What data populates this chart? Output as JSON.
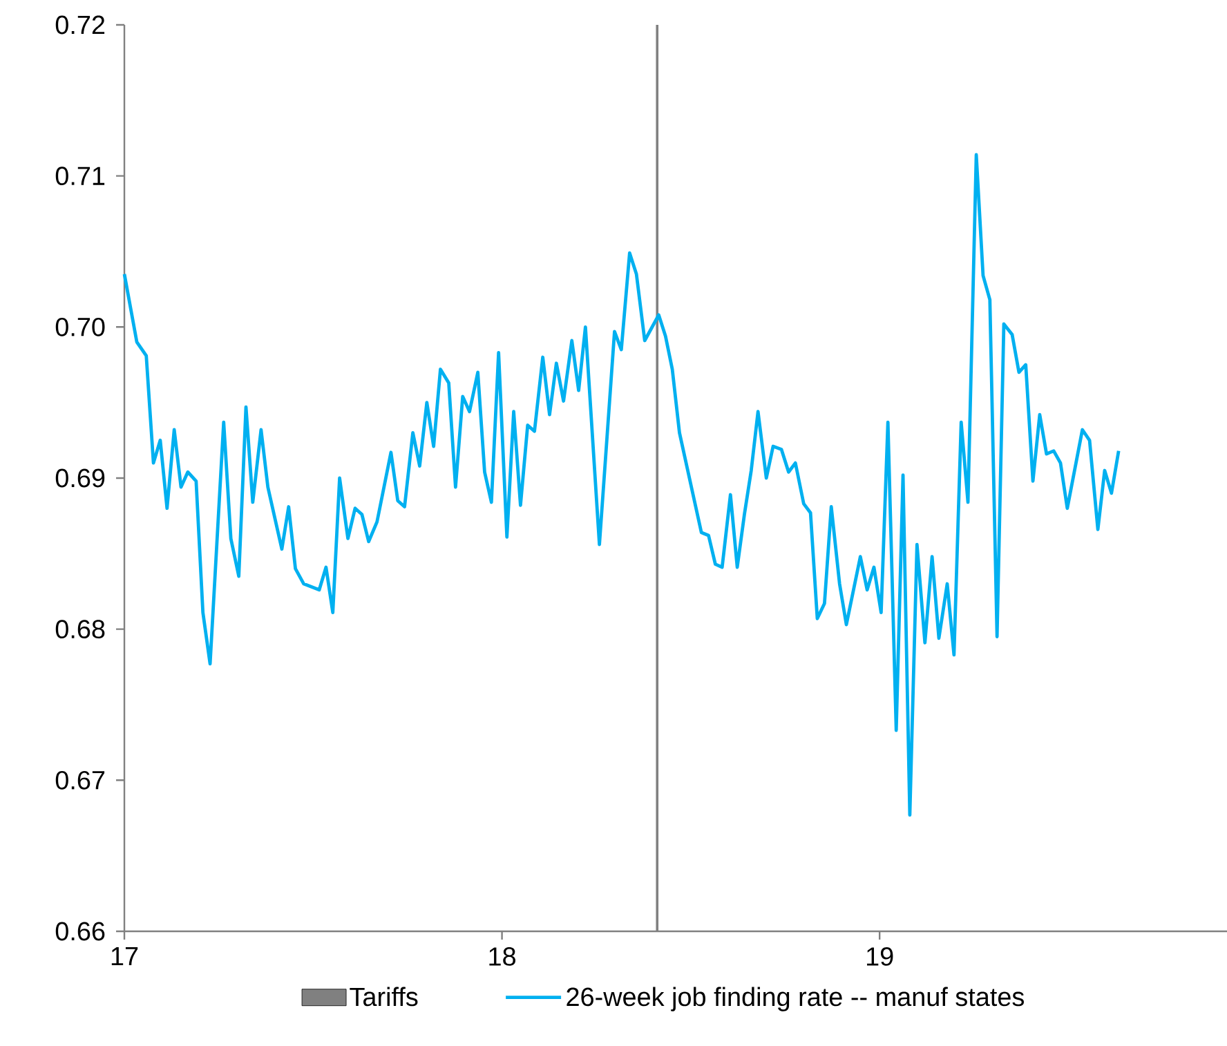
{
  "chart_data": {
    "type": "line",
    "x": [
      17.0,
      17.033,
      17.058,
      17.077,
      17.095,
      17.113,
      17.132,
      17.15,
      17.168,
      17.19,
      17.208,
      17.227,
      17.263,
      17.282,
      17.303,
      17.322,
      17.34,
      17.362,
      17.38,
      17.417,
      17.435,
      17.453,
      17.475,
      17.516,
      17.534,
      17.552,
      17.57,
      17.592,
      17.611,
      17.629,
      17.647,
      17.669,
      17.706,
      17.724,
      17.742,
      17.764,
      17.782,
      17.801,
      17.819,
      17.837,
      17.859,
      17.877,
      17.896,
      17.914,
      17.936,
      17.954,
      17.972,
      17.991,
      18.013,
      18.031,
      18.049,
      18.068,
      18.086,
      18.108,
      18.126,
      18.144,
      18.163,
      18.185,
      18.203,
      18.221,
      18.258,
      18.298,
      18.316,
      18.338,
      18.356,
      18.378,
      18.415,
      18.433,
      18.451,
      18.47,
      18.506,
      18.528,
      18.547,
      18.565,
      18.583,
      18.605,
      18.623,
      18.642,
      18.66,
      18.678,
      18.7,
      18.718,
      18.74,
      18.759,
      18.777,
      18.799,
      18.817,
      18.835,
      18.854,
      18.872,
      18.894,
      18.912,
      18.949,
      18.967,
      18.985,
      19.004,
      19.022,
      19.044,
      19.062,
      19.08,
      19.099,
      19.12,
      19.139,
      19.157,
      19.179,
      19.197,
      19.216,
      19.234,
      19.256,
      19.274,
      19.292,
      19.311,
      19.329,
      19.351,
      19.369,
      19.387,
      19.406,
      19.424,
      19.442,
      19.461,
      19.479,
      19.497,
      19.537,
      19.556,
      19.578,
      19.596,
      19.614,
      19.633
    ],
    "series": [
      {
        "name": "26-week job finding rate -- manuf states",
        "color": "#00b0f0",
        "values": [
          0.7035,
          0.699,
          0.6981,
          0.691,
          0.6925,
          0.688,
          0.6932,
          0.6894,
          0.6904,
          0.6898,
          0.6811,
          0.6777,
          0.6937,
          0.686,
          0.6835,
          0.6947,
          0.6884,
          0.6932,
          0.6894,
          0.6853,
          0.6881,
          0.684,
          0.683,
          0.6826,
          0.6841,
          0.6811,
          0.69,
          0.686,
          0.688,
          0.6876,
          0.6858,
          0.6871,
          0.6917,
          0.6885,
          0.6881,
          0.693,
          0.6908,
          0.695,
          0.6921,
          0.6972,
          0.6963,
          0.6894,
          0.6954,
          0.6944,
          0.697,
          0.6904,
          0.6884,
          0.6983,
          0.6861,
          0.6944,
          0.6882,
          0.6935,
          0.6931,
          0.698,
          0.6942,
          0.6976,
          0.6951,
          0.6991,
          0.6958,
          0.7,
          0.6856,
          0.6997,
          0.6985,
          0.7049,
          0.7035,
          0.6991,
          0.7008,
          0.6994,
          0.6972,
          0.693,
          0.6889,
          0.6864,
          0.6862,
          0.6843,
          0.6841,
          0.6889,
          0.6841,
          0.6876,
          0.6905,
          0.6944,
          0.69,
          0.6921,
          0.6919,
          0.6904,
          0.691,
          0.6883,
          0.6877,
          0.6807,
          0.6817,
          0.6881,
          0.683,
          0.6803,
          0.6848,
          0.6826,
          0.6841,
          0.6811,
          0.6937,
          0.6733,
          0.6902,
          0.6677,
          0.6856,
          0.6791,
          0.6848,
          0.6794,
          0.683,
          0.6783,
          0.6937,
          0.6884,
          0.7114,
          0.7034,
          0.7018,
          0.6795,
          0.7002,
          0.6995,
          0.697,
          0.6975,
          0.6898,
          0.6942,
          0.6916,
          0.6918,
          0.691,
          0.688,
          0.6932,
          0.6925,
          0.6866,
          0.6905,
          0.689,
          0.6918
        ]
      }
    ],
    "xlim": [
      17,
      19.92
    ],
    "xticks": [
      17,
      18,
      19
    ],
    "ylim": [
      0.66,
      0.72
    ],
    "yticks": [
      0.66,
      0.67,
      0.68,
      0.69,
      {
        "value": 0.7,
        "label": "0.70"
      },
      0.71,
      0.72
    ],
    "ref_lines": [
      {
        "axis": "x",
        "value": 18.411,
        "label": "Tariffs",
        "color": "#808080"
      }
    ],
    "legend": "bottom",
    "grid": false,
    "marker": "none",
    "line_style": "solid"
  }
}
